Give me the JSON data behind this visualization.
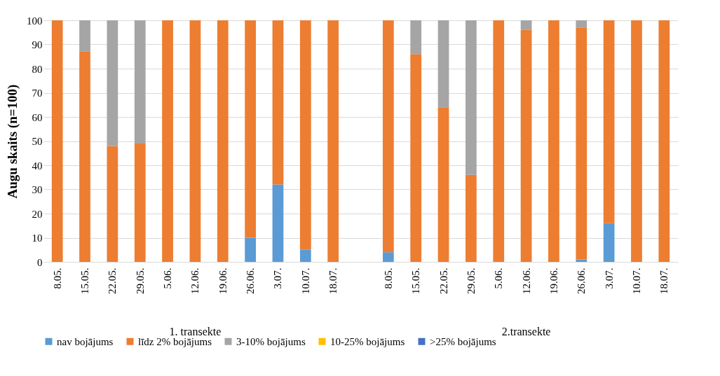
{
  "chart_data": {
    "type": "bar",
    "stacked": true,
    "ylabel": "Augu skaits (n=100)",
    "categories": [
      "8.05.",
      "15.05.",
      "22.05.",
      "29.05.",
      "5.06.",
      "12.06.",
      "19.06.",
      "26.06.",
      "3.07.",
      "10.07.",
      "18.07.",
      null,
      "8.05.",
      "15.05.",
      "22.05.",
      "29.05.",
      "5.06.",
      "12.06.",
      "19.06.",
      "26.06.",
      "3.07.",
      "10.07.",
      "18.07."
    ],
    "series": [
      {
        "name": "nav bojājums",
        "color": "#5b9bd5",
        "values": [
          0,
          0,
          0,
          0,
          0,
          0,
          0,
          10,
          32,
          5,
          0,
          null,
          4,
          0,
          0,
          0,
          0,
          0,
          0,
          1,
          16,
          0,
          0
        ]
      },
      {
        "name": "līdz 2% bojājums",
        "color": "#ed7d31",
        "values": [
          100,
          87,
          48,
          49,
          100,
          100,
          100,
          90,
          68,
          95,
          100,
          null,
          96,
          86,
          64,
          36,
          100,
          96,
          100,
          96,
          84,
          100,
          100
        ]
      },
      {
        "name": "3-10% bojājums",
        "color": "#a5a5a5",
        "values": [
          0,
          13,
          52,
          51,
          0,
          0,
          0,
          0,
          0,
          0,
          0,
          null,
          0,
          14,
          36,
          64,
          0,
          4,
          0,
          3,
          0,
          0,
          0
        ]
      },
      {
        "name": "10-25% bojājums",
        "color": "#ffc000",
        "values": [
          0,
          0,
          0,
          0,
          0,
          0,
          0,
          0,
          0,
          0,
          0,
          null,
          0,
          0,
          0,
          0,
          0,
          0,
          0,
          0,
          0,
          0,
          0
        ]
      },
      {
        "name": ">25% bojājums",
        "color": "#4472c4",
        "values": [
          0,
          0,
          0,
          0,
          0,
          0,
          0,
          0,
          0,
          0,
          0,
          null,
          0,
          0,
          0,
          0,
          0,
          0,
          0,
          0,
          0,
          0,
          0
        ]
      }
    ],
    "annotations": [
      "1. transekte",
      "2.transekte"
    ],
    "ylim": [
      0,
      100
    ],
    "yticks": [
      0,
      10,
      20,
      30,
      40,
      50,
      60,
      70,
      80,
      90,
      100
    ],
    "grid": "y",
    "legend": "bottom"
  }
}
